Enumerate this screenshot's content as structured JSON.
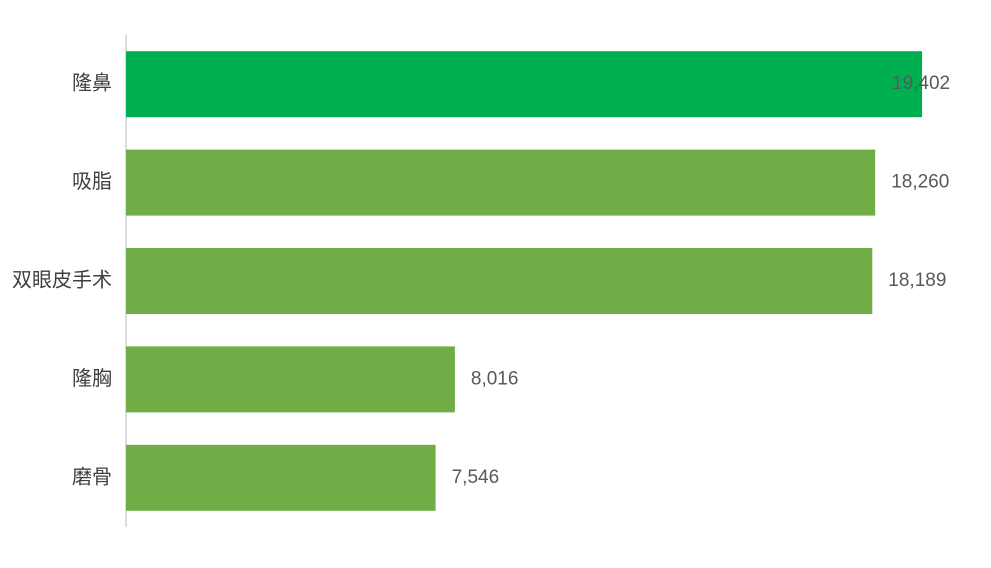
{
  "chart_data": {
    "type": "bar",
    "orientation": "horizontal",
    "categories": [
      "隆鼻",
      "吸脂",
      "双眼皮手术",
      "隆胸",
      "磨骨"
    ],
    "values": [
      19402,
      18260,
      18189,
      8016,
      7546
    ],
    "value_labels": [
      "19,402",
      "18,260",
      "18,189",
      "8,016",
      "7,546"
    ],
    "colors": [
      "#00b050",
      "#70ad47",
      "#70ad47",
      "#70ad47",
      "#70ad47"
    ],
    "xlim": [
      0,
      20000
    ],
    "grid": false
  }
}
